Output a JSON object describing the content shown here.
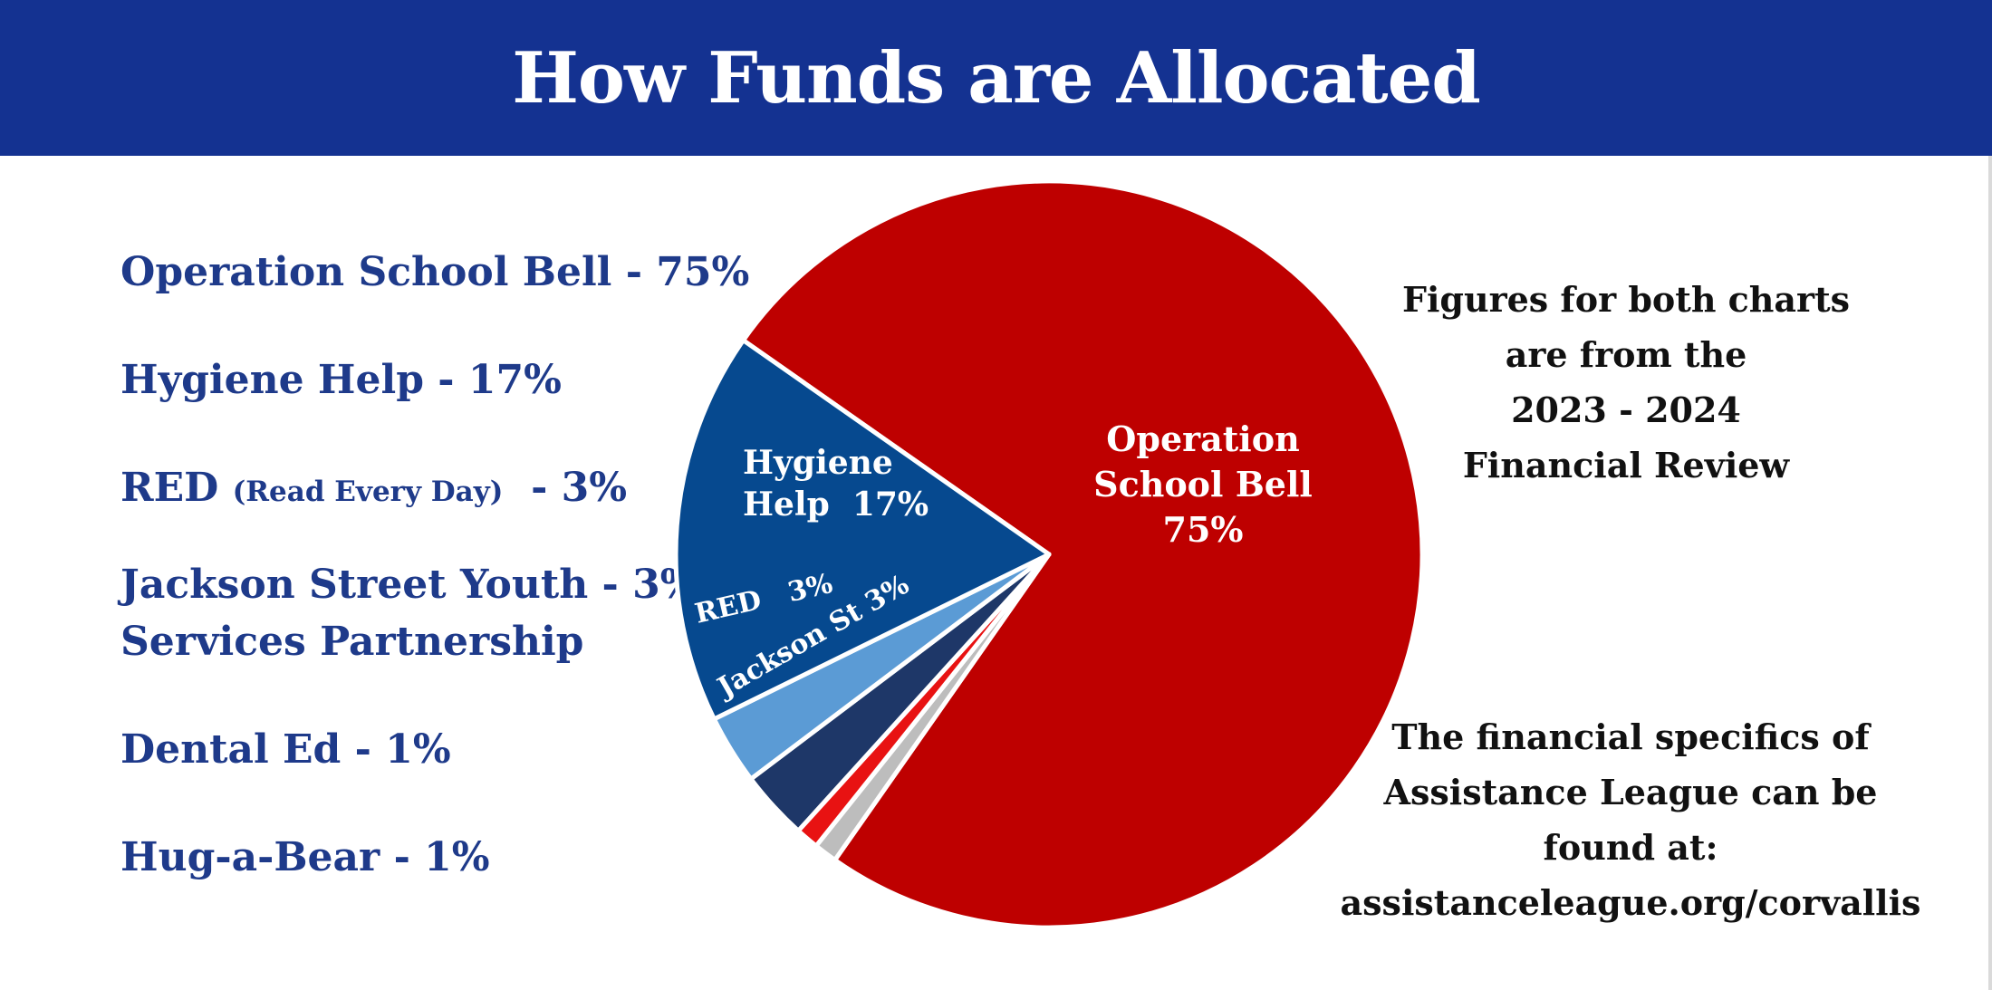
{
  "title": "How Funds are Allocated",
  "legend": [
    {
      "name": "Operation School Bell",
      "suffix": " - 75%"
    },
    {
      "name": "Hygiene Help",
      "suffix": " - 17%"
    },
    {
      "name": "RED",
      "paren": "(Read Every Day)",
      "suffix": "  - 3%"
    },
    {
      "name": "Jackson Street Youth",
      "suffix": " - 3%",
      "line2": "Services Partnership"
    },
    {
      "name": "Dental Ed",
      "suffix": " - 1%"
    },
    {
      "name": "Hug-a-Bear",
      "suffix": " - 1%"
    }
  ],
  "chart_data": {
    "type": "pie",
    "title": "How Funds are Allocated",
    "slices": [
      {
        "name": "Operation School Bell",
        "value": 75,
        "color": "#be0000",
        "label_lines": [
          "Operation",
          "School Bell",
          "75%"
        ]
      },
      {
        "name": "Hug-a-Bear",
        "value": 1,
        "color": "#bdbdbd",
        "label_lines": []
      },
      {
        "name": "Dental Ed",
        "value": 1,
        "color": "#e81212",
        "label_lines": []
      },
      {
        "name": "Jackson Street Youth Services Partnership",
        "value": 3,
        "color": "#1e3768",
        "label_lines": [
          "Jackson St 3%"
        ]
      },
      {
        "name": "RED (Read Every Day)",
        "value": 3,
        "color": "#5b9bd5",
        "label_lines": [
          "RED   3%"
        ]
      },
      {
        "name": "Hygiene Help",
        "value": 17,
        "color": "#06498f",
        "label_lines": [
          "Hygiene",
          "Help  17%"
        ]
      }
    ]
  },
  "info_top": [
    "Figures for both charts",
    "are from the",
    "2023 - 2024",
    "Financial Review"
  ],
  "info_bottom": [
    "The financial specifics of",
    "Assistance League can be",
    "found at:",
    "assistanceleague.org/corvallis"
  ]
}
